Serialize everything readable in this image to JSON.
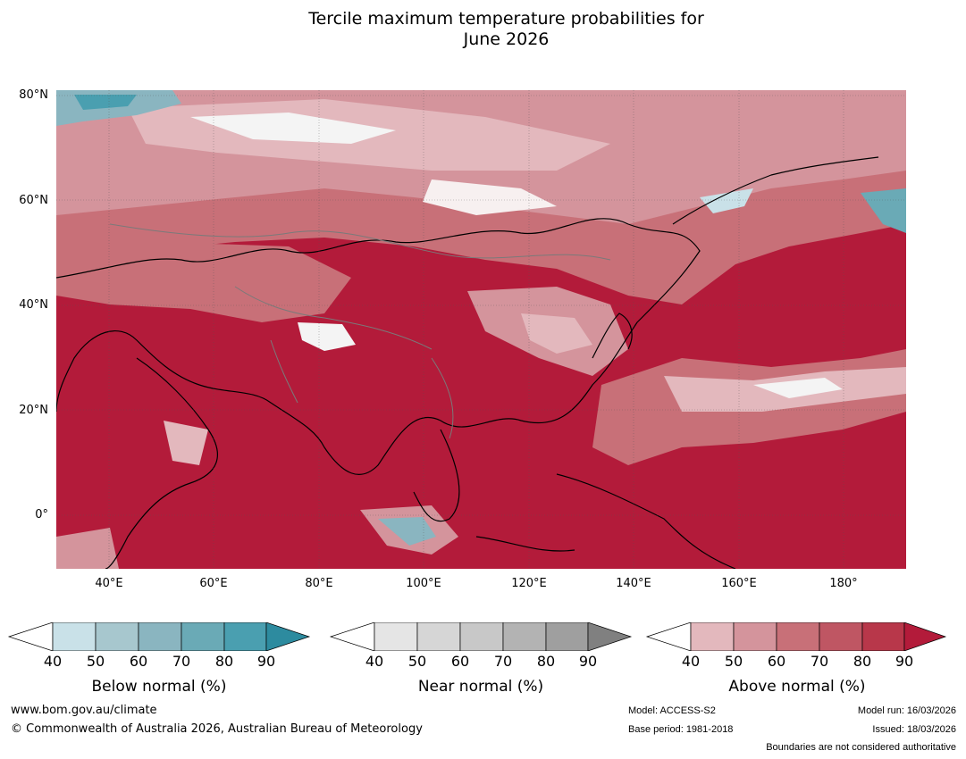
{
  "title_line1": "Tercile maximum temperature probabilities for",
  "title_line2": "June 2026",
  "latitude_labels": [
    "80°N",
    "60°N",
    "40°N",
    "20°N",
    "0°"
  ],
  "longitude_labels": [
    "40°E",
    "60°E",
    "80°E",
    "100°E",
    "120°E",
    "140°E",
    "160°E",
    "180°"
  ],
  "legends": [
    {
      "name": "Below normal (%)",
      "ticks": [
        "40",
        "50",
        "60",
        "70",
        "80",
        "90"
      ],
      "colors": [
        "#ffffff",
        "#c9e1e8",
        "#a7c7ce",
        "#8ab5c0",
        "#6aaab6",
        "#4a9fb0",
        "#2d8b9f"
      ]
    },
    {
      "name": "Near normal (%)",
      "ticks": [
        "40",
        "50",
        "60",
        "70",
        "80",
        "90"
      ],
      "colors": [
        "#ffffff",
        "#e5e5e5",
        "#d6d6d6",
        "#c8c8c8",
        "#b3b3b3",
        "#9f9f9f",
        "#808080"
      ]
    },
    {
      "name": "Above normal (%)",
      "ticks": [
        "40",
        "50",
        "60",
        "70",
        "80",
        "90"
      ],
      "colors": [
        "#ffffff",
        "#e3b8bd",
        "#d4949c",
        "#c87078",
        "#bf5663",
        "#b8374a",
        "#b31b3a"
      ]
    }
  ],
  "footer": {
    "website": "www.bom.gov.au/climate",
    "copyright": "© Commonwealth of Australia 2026, Australian Bureau of Meteorology",
    "model": "Model: ACCESS-S2",
    "base_period": "Base period: 1981-2018",
    "model_run": "Model run: 16/03/2026",
    "issued": "Issued: 18/03/2026",
    "disclaimer": "Boundaries are not considered authoritative"
  }
}
